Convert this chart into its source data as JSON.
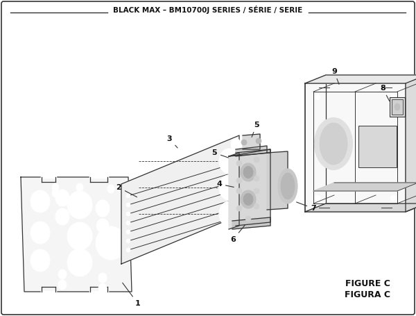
{
  "title": "BLACK MAX – BM10700J SERIES / SÉRIE / SERIE",
  "figure_label": "FIGURE C",
  "figura_label": "FIGURA C",
  "bg_color": "#ffffff",
  "border_color": "#333333",
  "line_color": "#333333",
  "fill_light": "#f0f0f0",
  "fill_mid": "#e0e0e0",
  "fill_dark": "#c8c8c8"
}
